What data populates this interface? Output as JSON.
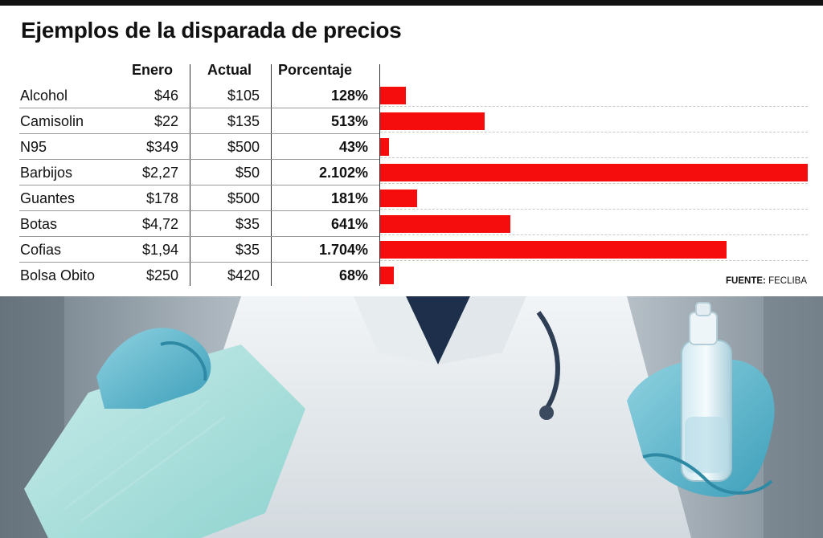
{
  "chart_data": {
    "type": "bar",
    "title": "Ejemplos de la disparada de precios",
    "columns": [
      "Enero",
      "Actual",
      "Porcentaje"
    ],
    "categories": [
      "Alcohol",
      "Camisolin",
      "N95",
      "Barbijos",
      "Guantes",
      "Botas",
      "Cofias",
      "Bolsa Obito"
    ],
    "enero": [
      "$46",
      "$22",
      "$349",
      "$2,27",
      "$178",
      "$4,72",
      "$1,94",
      "$250"
    ],
    "actual": [
      "$105",
      "$135",
      "$500",
      "$50",
      "$500",
      "$35",
      "$35",
      "$420"
    ],
    "percent_labels": [
      "128%",
      "513%",
      "43%",
      "2.102%",
      "181%",
      "641%",
      "1.704%",
      "68%"
    ],
    "values": [
      128,
      513,
      43,
      2102,
      181,
      641,
      1704,
      68
    ],
    "unit": "%",
    "bar_color": "#f50c0c",
    "orientation": "horizontal",
    "xlim": [
      0,
      2102
    ]
  },
  "source": {
    "label": "FUENTE:",
    "value": "FECLIBA"
  },
  "photo": {
    "description_icons": [
      "gloved-hand-holding-mask",
      "gloved-hand-holding-sanitizer-bottle",
      "doctor-coat"
    ]
  }
}
